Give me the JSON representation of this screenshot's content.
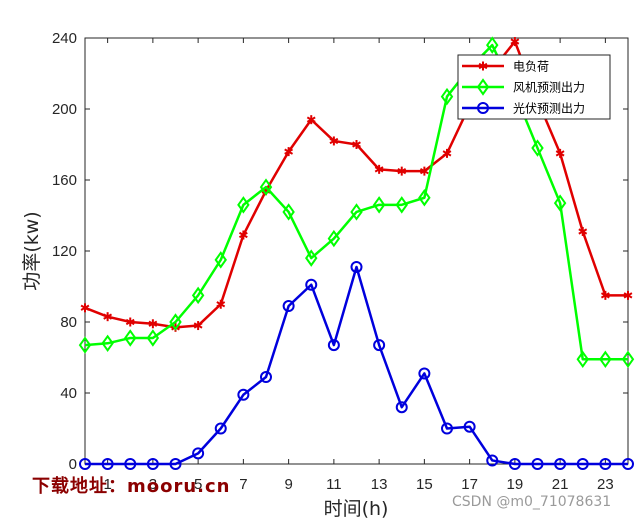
{
  "chart_data": {
    "type": "line",
    "x": [
      0,
      1,
      2,
      3,
      4,
      5,
      6,
      7,
      8,
      9,
      10,
      11,
      12,
      13,
      14,
      15,
      16,
      17,
      18,
      19,
      20,
      21,
      22,
      23,
      24
    ],
    "xticks": [
      1,
      3,
      5,
      7,
      9,
      11,
      13,
      15,
      17,
      19,
      21,
      23
    ],
    "xlim": [
      0,
      24
    ],
    "ylim": [
      0,
      240
    ],
    "yticks": [
      0,
      40,
      80,
      120,
      160,
      200,
      240
    ],
    "xlabel": "时间(h)",
    "ylabel": "功率(kw)",
    "legend_position": "top-right",
    "series": [
      {
        "name": "电负荷",
        "color": "#e00000",
        "marker": "asterisk",
        "values": [
          88,
          83,
          80,
          79,
          77,
          78,
          90,
          129,
          154,
          176,
          194,
          182,
          180,
          166,
          165,
          165,
          175,
          202,
          222,
          238,
          205,
          175,
          131,
          95,
          95
        ]
      },
      {
        "name": "风机预测出力",
        "color": "#00ff00",
        "marker": "diamond",
        "values": [
          67,
          68,
          71,
          71,
          80,
          95,
          115,
          146,
          156,
          142,
          116,
          127,
          142,
          146,
          146,
          150,
          207,
          223,
          236,
          209,
          178,
          147,
          59,
          59,
          59
        ]
      },
      {
        "name": "光伏预测出力",
        "color": "#0000dd",
        "marker": "circle",
        "values": [
          0,
          0,
          0,
          0,
          0,
          6,
          20,
          39,
          49,
          89,
          101,
          67,
          111,
          67,
          32,
          51,
          20,
          21,
          2,
          0,
          0,
          0,
          0,
          0,
          0
        ]
      }
    ]
  },
  "watermark": "下载地址：mooru.cn",
  "credit": "CSDN @m0_71078631"
}
